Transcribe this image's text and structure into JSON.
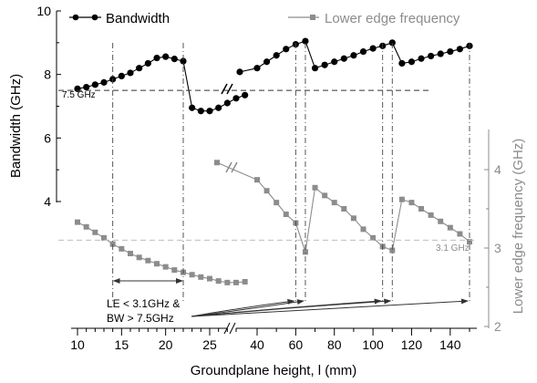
{
  "chart_data": {
    "type": "line",
    "xlabel": "Groundplane height, l (mm)",
    "ylabel_left": "Bandwidth (GHz)",
    "ylabel_right": "Lower edge frequency (GHz)",
    "x_axis_break": true,
    "x_ticks_segment1": [
      10,
      15,
      20,
      25
    ],
    "x_ticks_segment2": [
      40,
      60,
      80,
      100,
      120,
      140
    ],
    "x_tick_labels": [
      "10",
      "15",
      "20",
      "25",
      "40",
      "60",
      "80",
      "100",
      "120",
      "140"
    ],
    "ylim_left": [
      2,
      10
    ],
    "yticks_left": [
      "4",
      "6",
      "8",
      "10"
    ],
    "ylim_right": [
      2,
      4.3
    ],
    "yticks_right": [
      "2",
      "3",
      "4"
    ],
    "grid": false,
    "legend_position": "top",
    "colors": {
      "bandwidth": "#000000",
      "lower_edge": "#8c8c8c"
    },
    "series": [
      {
        "name": "Bandwidth",
        "axis": "left",
        "marker": "circle",
        "segments": [
          {
            "x": [
              10,
              11,
              12,
              13,
              14,
              15,
              16,
              17,
              18,
              19,
              20,
              21,
              22,
              23,
              24,
              25,
              26,
              27,
              28,
              29
            ],
            "y": [
              7.55,
              7.6,
              7.68,
              7.75,
              7.85,
              7.95,
              8.05,
              8.2,
              8.35,
              8.52,
              8.56,
              8.49,
              8.42,
              6.95,
              6.85,
              6.85,
              6.95,
              7.1,
              7.25,
              7.35
            ]
          },
          {
            "x": [
              36,
              40,
              45,
              50,
              55,
              60,
              65,
              70,
              75,
              80,
              85,
              90,
              95,
              100,
              105,
              110,
              115,
              120,
              125,
              130,
              135,
              140,
              145,
              150
            ],
            "y": [
              8.08,
              8.2,
              8.4,
              8.6,
              8.8,
              8.95,
              9.05,
              8.2,
              8.3,
              8.4,
              8.5,
              8.6,
              8.72,
              8.82,
              8.9,
              9.0,
              8.35,
              8.4,
              8.5,
              8.58,
              8.65,
              8.72,
              8.8,
              8.9
            ]
          }
        ]
      },
      {
        "name": "Lower edge frequency",
        "axis": "right",
        "marker": "square",
        "segments": [
          {
            "x": [
              10,
              11,
              12,
              13,
              14,
              15,
              16,
              17,
              18,
              19,
              20,
              21,
              22,
              23,
              24,
              25,
              26,
              27,
              28,
              29
            ],
            "y": [
              3.33,
              3.27,
              3.2,
              3.13,
              3.05,
              2.99,
              2.93,
              2.88,
              2.84,
              2.8,
              2.76,
              2.72,
              2.69,
              2.66,
              2.63,
              2.61,
              2.58,
              2.56,
              2.56,
              2.57
            ]
          },
          {
            "x": [
              30,
              40,
              45,
              50,
              55,
              60,
              65,
              70,
              75,
              80,
              85,
              90,
              95,
              100,
              105,
              110,
              115,
              120,
              125,
              130,
              135,
              140,
              145,
              150
            ],
            "y": [
              4.09,
              3.87,
              3.73,
              3.58,
              3.43,
              3.32,
              2.95,
              3.77,
              3.67,
              3.58,
              3.5,
              3.38,
              3.24,
              3.13,
              3.02,
              2.97,
              3.62,
              3.58,
              3.5,
              3.42,
              3.34,
              3.26,
              3.18,
              3.08
            ]
          }
        ]
      }
    ],
    "annotations": {
      "bw_threshold_label": "7.5 GHz",
      "bw_threshold_value": 7.5,
      "le_threshold_label": "3.1 GHz",
      "le_threshold_value": 3.1,
      "condition_line1": "LE < 3.1GHz &",
      "condition_line2": "BW > 7.5GHz",
      "range_start": 14,
      "range_end": 22,
      "arrow_targets": [
        60,
        65,
        105,
        110,
        150
      ]
    }
  }
}
